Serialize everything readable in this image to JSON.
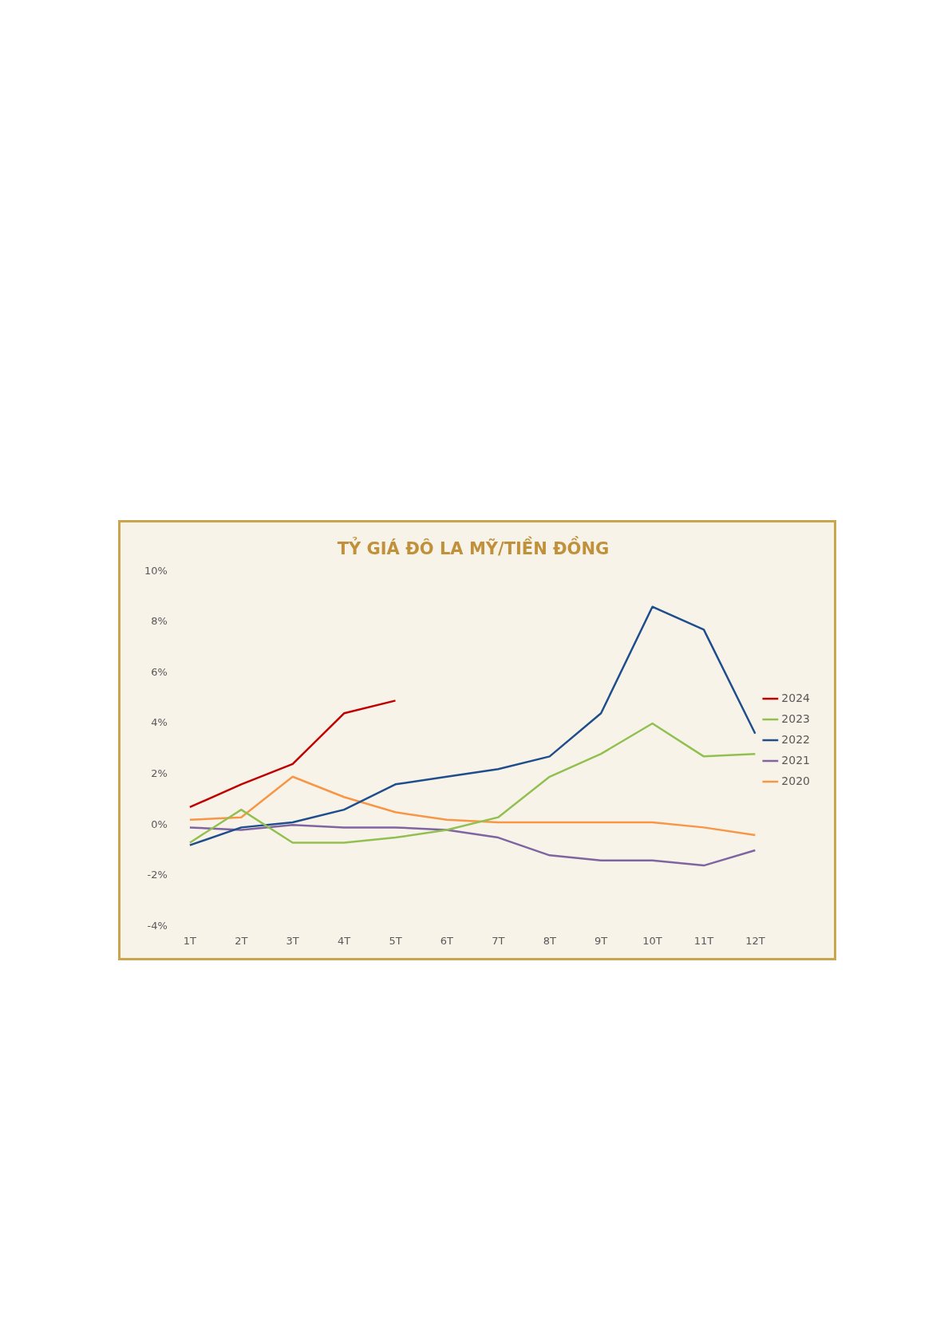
{
  "chart_data": {
    "type": "line",
    "title": "TỶ GIÁ ĐÔ LA MỸ/TIỀN ĐỒNG",
    "categories": [
      "1T",
      "2T",
      "3T",
      "4T",
      "5T",
      "6T",
      "7T",
      "8T",
      "9T",
      "10T",
      "11T",
      "12T"
    ],
    "series": [
      {
        "name": "2024",
        "color": "#c00000",
        "values": [
          0.7,
          1.6,
          2.4,
          4.4,
          4.9,
          null,
          null,
          null,
          null,
          null,
          null,
          null
        ]
      },
      {
        "name": "2023",
        "color": "#92c050",
        "values": [
          -0.7,
          0.6,
          -0.7,
          -0.7,
          -0.5,
          -0.2,
          0.3,
          1.9,
          2.8,
          4.0,
          2.7,
          2.8
        ]
      },
      {
        "name": "2022",
        "color": "#1f4e8c",
        "values": [
          -0.8,
          -0.1,
          0.1,
          0.6,
          1.6,
          1.9,
          2.2,
          2.7,
          4.4,
          8.6,
          7.7,
          3.6
        ]
      },
      {
        "name": "2021",
        "color": "#8064a2",
        "values": [
          -0.1,
          -0.2,
          0.0,
          -0.1,
          -0.1,
          -0.2,
          -0.5,
          -1.2,
          -1.4,
          -1.4,
          -1.6,
          -1.0
        ]
      },
      {
        "name": "2020",
        "color": "#f79646",
        "values": [
          0.2,
          0.3,
          1.9,
          1.1,
          0.5,
          0.2,
          0.1,
          0.1,
          0.1,
          0.1,
          -0.1,
          -0.4
        ]
      }
    ],
    "ylim": [
      -4,
      10
    ],
    "yticks": [
      {
        "value": -4,
        "label": "-4%"
      },
      {
        "value": -2,
        "label": "-2%"
      },
      {
        "value": 0,
        "label": "0%"
      },
      {
        "value": 2,
        "label": "2%"
      },
      {
        "value": 4,
        "label": "4%"
      },
      {
        "value": 6,
        "label": "6%"
      },
      {
        "value": 8,
        "label": "8%"
      },
      {
        "value": 10,
        "label": "10%"
      }
    ],
    "grid": false,
    "legend": "right",
    "marker": "none"
  }
}
